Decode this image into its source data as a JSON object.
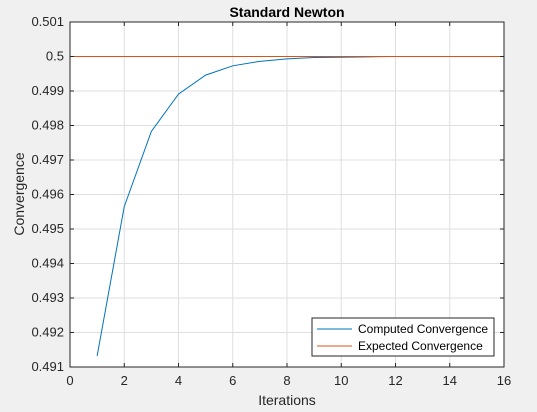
{
  "chart_data": {
    "type": "line",
    "title": "Standard Newton",
    "xlabel": "Iterations",
    "ylabel": "Convergence",
    "xlim": [
      0,
      16
    ],
    "ylim": [
      0.491,
      0.501
    ],
    "xticks": [
      0,
      2,
      4,
      6,
      8,
      10,
      12,
      14,
      16
    ],
    "yticks": [
      0.491,
      0.492,
      0.493,
      0.494,
      0.495,
      0.496,
      0.497,
      0.498,
      0.499,
      0.5,
      0.501
    ],
    "xtick_labels": [
      "0",
      "2",
      "4",
      "6",
      "8",
      "10",
      "12",
      "14",
      "16"
    ],
    "ytick_labels": [
      "0.491",
      "0.492",
      "0.493",
      "0.494",
      "0.495",
      "0.496",
      "0.497",
      "0.498",
      "0.499",
      "0.5",
      "0.501"
    ],
    "grid": true,
    "legend_position": "bottom-right",
    "series": [
      {
        "name": "Computed Convergence",
        "color": "#0072BD",
        "x": [
          1,
          2,
          3,
          4,
          5,
          6,
          7,
          8,
          9,
          10,
          11,
          12,
          13,
          14,
          15,
          16
        ],
        "y": [
          0.49132,
          0.49565,
          0.49783,
          0.49891,
          0.49946,
          0.49973,
          0.49986,
          0.49993,
          0.49997,
          0.49998,
          0.49999,
          0.5,
          0.5,
          0.5,
          0.5,
          0.5
        ]
      },
      {
        "name": "Expected Convergence",
        "color": "#D95319",
        "x": [
          0,
          16
        ],
        "y": [
          0.5,
          0.5
        ]
      }
    ]
  }
}
